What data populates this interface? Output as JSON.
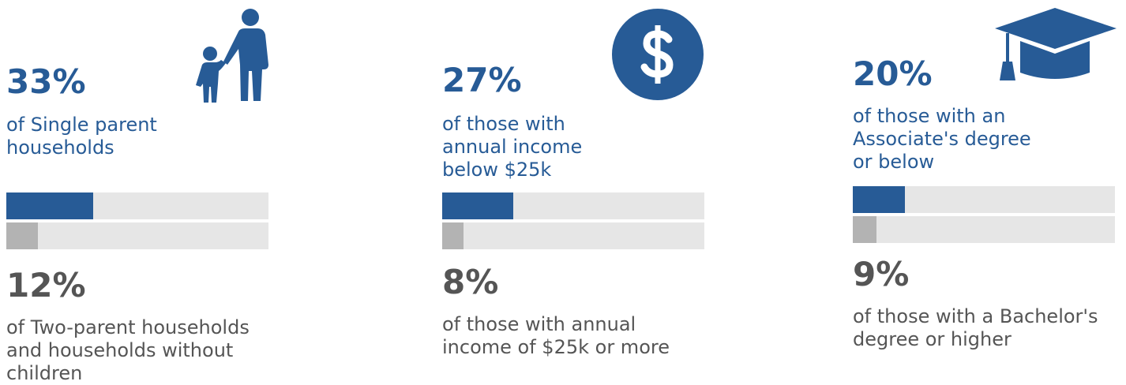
{
  "chart_data": [
    {
      "type": "bar",
      "categories": [
        "of Single parent households",
        "of Two-parent households and households without children"
      ],
      "values": [
        33,
        12
      ],
      "value_labels": [
        "33%",
        "12%"
      ],
      "colors": [
        "#275b96",
        "#b3b3b3"
      ],
      "xlim": [
        0,
        100
      ]
    },
    {
      "type": "bar",
      "categories": [
        "of those with annual income below $25k",
        "of those with annual income of $25k or more"
      ],
      "values": [
        27,
        8
      ],
      "value_labels": [
        "27%",
        "8%"
      ],
      "colors": [
        "#275b96",
        "#b3b3b3"
      ],
      "xlim": [
        0,
        100
      ]
    },
    {
      "type": "bar",
      "categories": [
        "of those with an Associate's degree or below",
        "of those with a Bachelor's degree or higher"
      ],
      "values": [
        20,
        9
      ],
      "value_labels": [
        "20%",
        "9%"
      ],
      "colors": [
        "#275b96",
        "#b3b3b3"
      ],
      "xlim": [
        0,
        100
      ]
    }
  ]
}
